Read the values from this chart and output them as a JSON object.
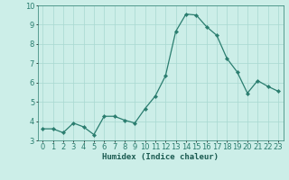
{
  "x": [
    0,
    1,
    2,
    3,
    4,
    5,
    6,
    7,
    8,
    9,
    10,
    11,
    12,
    13,
    14,
    15,
    16,
    17,
    18,
    19,
    20,
    21,
    22,
    23
  ],
  "y": [
    3.6,
    3.6,
    3.4,
    3.9,
    3.7,
    3.3,
    4.25,
    4.25,
    4.05,
    3.9,
    4.65,
    5.3,
    6.35,
    8.65,
    9.55,
    9.5,
    8.9,
    8.45,
    7.25,
    6.55,
    5.45,
    6.1,
    5.8,
    5.55
  ],
  "line_color": "#2a7d6f",
  "marker": "D",
  "marker_size": 2.2,
  "bg_color": "#cceee8",
  "grid_color": "#a8d8d0",
  "xlabel": "Humidex (Indice chaleur)",
  "ylim": [
    3,
    10
  ],
  "xlim": [
    -0.5,
    23.5
  ],
  "yticks": [
    3,
    4,
    5,
    6,
    7,
    8,
    9,
    10
  ],
  "xticks": [
    0,
    1,
    2,
    3,
    4,
    5,
    6,
    7,
    8,
    9,
    10,
    11,
    12,
    13,
    14,
    15,
    16,
    17,
    18,
    19,
    20,
    21,
    22,
    23
  ],
  "xlabel_fontsize": 6.5,
  "tick_fontsize": 6.0,
  "line_width": 0.9
}
